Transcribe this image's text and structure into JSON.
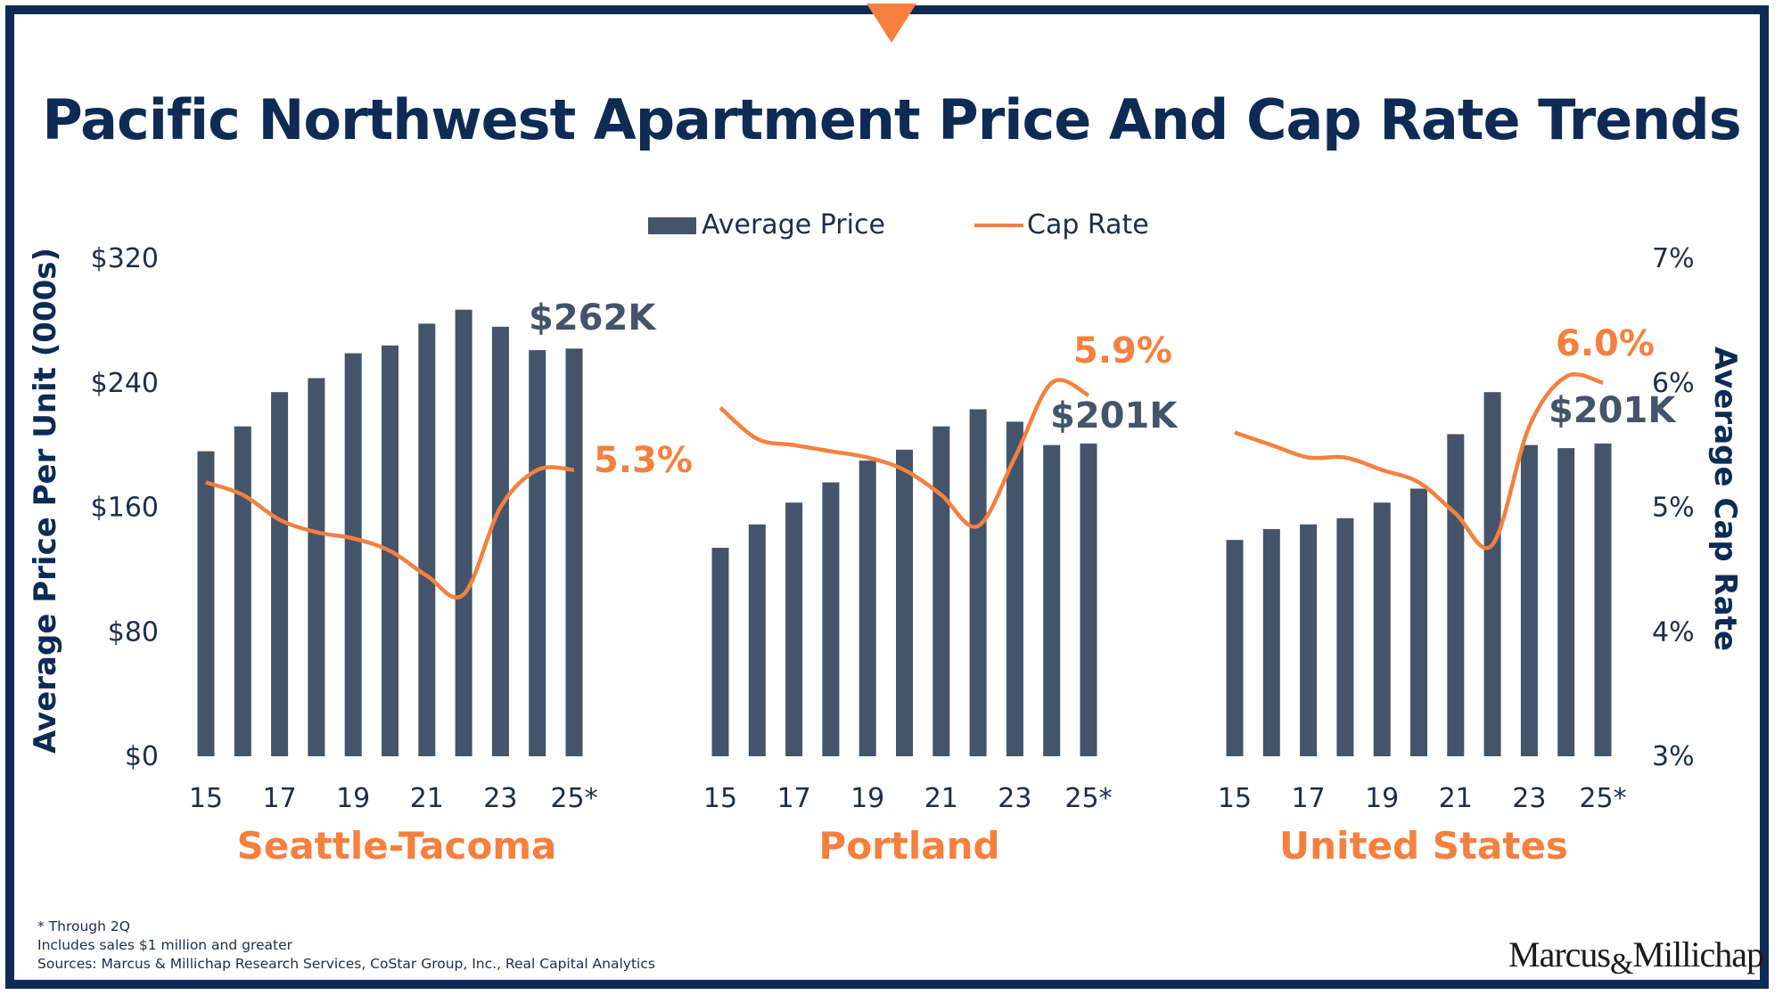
{
  "title": "Pacific Northwest Apartment Price And Cap Rate Trends",
  "colors": {
    "navy": "#0d2b55",
    "bar": "#44546a",
    "orange": "#f5803e",
    "axis_text": "#1c2e4a"
  },
  "legend": {
    "bar_label": "Average Price",
    "line_label": "Cap Rate",
    "position": "top-center"
  },
  "axes": {
    "left_label": "Average Price Per Unit (000s)",
    "right_label": "Average Cap Rate",
    "left_ticks": [
      "$0",
      "$80",
      "$160",
      "$240",
      "$320"
    ],
    "right_ticks": [
      "3%",
      "4%",
      "5%",
      "6%",
      "7%"
    ],
    "left_range": [
      0,
      320
    ],
    "right_range": [
      3,
      7
    ]
  },
  "chart_data": [
    {
      "type": "bar",
      "title": "Seattle-Tacoma",
      "x": [
        "15",
        "16",
        "17",
        "18",
        "19",
        "20",
        "21",
        "22",
        "23",
        "24",
        "25*"
      ],
      "x_tick_labels": [
        "15",
        "17",
        "19",
        "21",
        "23",
        "25*"
      ],
      "series": [
        {
          "name": "Average Price",
          "axis": "left",
          "values": [
            196,
            212,
            234,
            243,
            259,
            264,
            278,
            287,
            276,
            261,
            262
          ]
        },
        {
          "name": "Cap Rate",
          "axis": "right",
          "type": "line",
          "values": [
            5.2,
            5.1,
            4.9,
            4.8,
            4.75,
            4.65,
            4.45,
            4.3,
            5.0,
            5.3,
            5.3
          ]
        }
      ],
      "price_label": "$262K",
      "cap_label": "5.3%",
      "ylim": [
        0,
        320
      ],
      "y2lim": [
        3,
        7
      ]
    },
    {
      "type": "bar",
      "title": "Portland",
      "x": [
        "15",
        "16",
        "17",
        "18",
        "19",
        "20",
        "21",
        "22",
        "23",
        "24",
        "25*"
      ],
      "x_tick_labels": [
        "15",
        "17",
        "19",
        "21",
        "23",
        "25*"
      ],
      "series": [
        {
          "name": "Average Price",
          "axis": "left",
          "values": [
            134,
            149,
            163,
            176,
            190,
            197,
            212,
            223,
            215,
            200,
            201
          ]
        },
        {
          "name": "Cap Rate",
          "axis": "right",
          "type": "line",
          "values": [
            5.8,
            5.55,
            5.5,
            5.45,
            5.4,
            5.3,
            5.1,
            4.85,
            5.4,
            6.0,
            5.9
          ]
        }
      ],
      "price_label": "$201K",
      "cap_label": "5.9%",
      "ylim": [
        0,
        320
      ],
      "y2lim": [
        3,
        7
      ]
    },
    {
      "type": "bar",
      "title": "United States",
      "x": [
        "15",
        "16",
        "17",
        "18",
        "19",
        "20",
        "21",
        "22",
        "23",
        "24",
        "25*"
      ],
      "x_tick_labels": [
        "15",
        "17",
        "19",
        "21",
        "23",
        "25*"
      ],
      "series": [
        {
          "name": "Average Price",
          "axis": "left",
          "values": [
            139,
            146,
            149,
            153,
            163,
            172,
            207,
            234,
            200,
            198,
            201
          ]
        },
        {
          "name": "Cap Rate",
          "axis": "right",
          "type": "line",
          "values": [
            5.6,
            5.5,
            5.4,
            5.4,
            5.3,
            5.2,
            4.95,
            4.7,
            5.65,
            6.05,
            6.0
          ]
        }
      ],
      "price_label": "$201K",
      "cap_label": "6.0%",
      "ylim": [
        0,
        320
      ],
      "y2lim": [
        3,
        7
      ]
    }
  ],
  "footnotes": [
    "* Through 2Q",
    "Includes sales $1 million and greater",
    "Sources: Marcus & Millichap Research Services, CoStar Group, Inc., Real Capital Analytics"
  ],
  "logo": {
    "left": "Marcus",
    "amp": "&",
    "right": "Millichap"
  }
}
